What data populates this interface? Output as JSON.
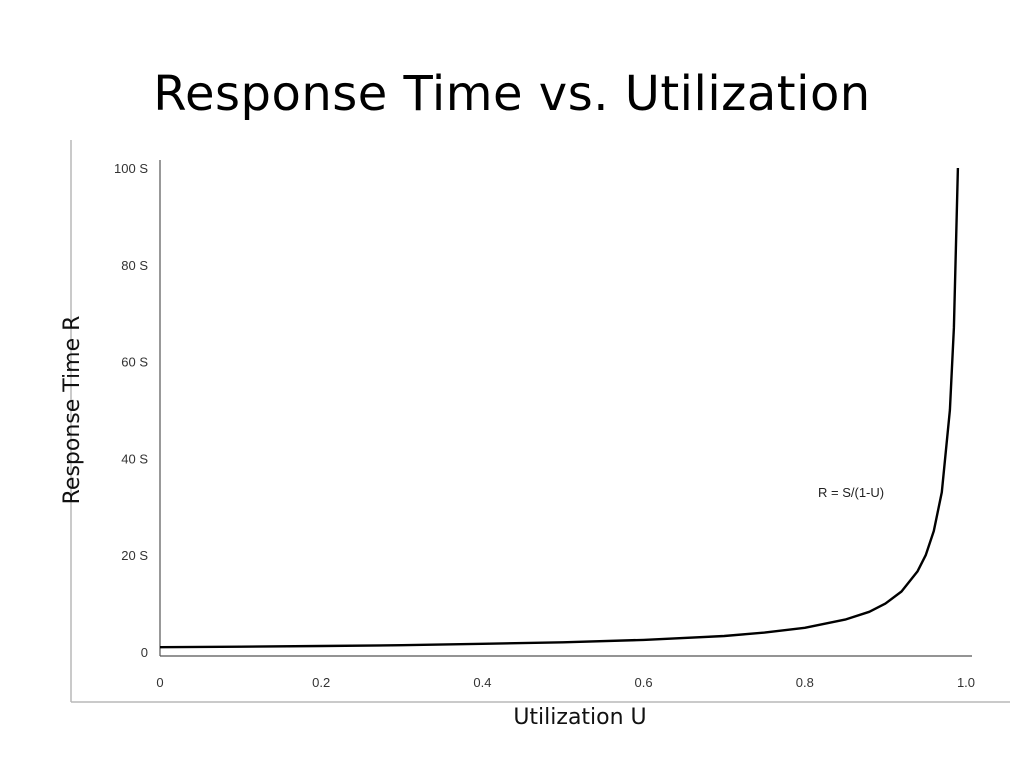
{
  "slide": {
    "title": "Response Time vs. Utilization"
  },
  "chart_data": {
    "type": "line",
    "title": "Response Time vs. Utilization",
    "xlabel": "Utilization U",
    "ylabel": "Response Time R",
    "xlim": [
      0,
      1.0
    ],
    "ylim": [
      0,
      100
    ],
    "x_ticks": [
      {
        "value": 0,
        "label": "0"
      },
      {
        "value": 0.2,
        "label": "0.2"
      },
      {
        "value": 0.4,
        "label": "0.4"
      },
      {
        "value": 0.6,
        "label": "0.6"
      },
      {
        "value": 0.8,
        "label": "0.8"
      },
      {
        "value": 1.0,
        "label": "1.0"
      }
    ],
    "y_ticks": [
      {
        "value": 0,
        "label": "0"
      },
      {
        "value": 20,
        "label": "20 S"
      },
      {
        "value": 40,
        "label": "40 S"
      },
      {
        "value": 60,
        "label": "60 S"
      },
      {
        "value": 80,
        "label": "80 S"
      },
      {
        "value": 100,
        "label": "100 S"
      }
    ],
    "grid": false,
    "annotation": "R = S/(1-U)",
    "series": [
      {
        "x": [
          0,
          0.1,
          0.2,
          0.3,
          0.4,
          0.5,
          0.6,
          0.7,
          0.75,
          0.8,
          0.85,
          0.88,
          0.9,
          0.92,
          0.94,
          0.95,
          0.96,
          0.97,
          0.98,
          0.985,
          0.99
        ],
        "y": [
          1,
          1.1,
          1.25,
          1.4,
          1.7,
          2,
          2.5,
          3.3,
          4,
          5,
          6.7,
          8.3,
          10,
          12.5,
          16.7,
          20,
          25,
          33,
          50,
          67,
          100
        ],
        "color": "#000000"
      }
    ]
  }
}
